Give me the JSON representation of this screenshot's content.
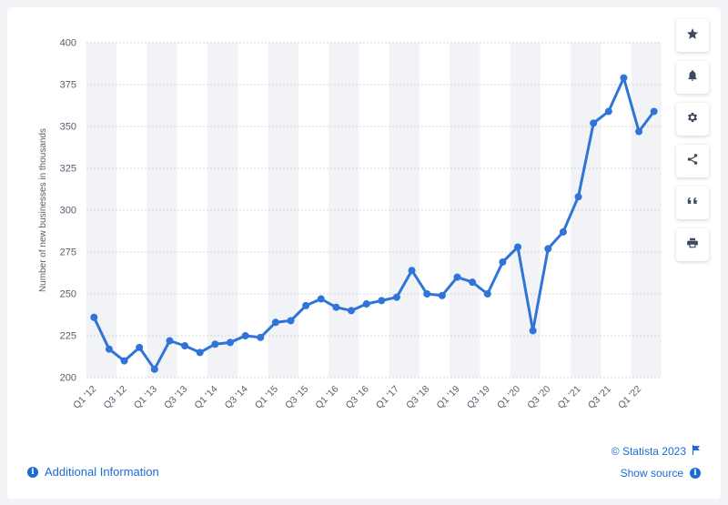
{
  "chart_data": {
    "type": "line",
    "ylabel": "Number of new businesses in thousands",
    "xlabel": "",
    "title": "",
    "ylim": [
      200,
      400
    ],
    "yticks": [
      200,
      225,
      250,
      275,
      300,
      325,
      350,
      375,
      400
    ],
    "grid": true,
    "legend": "none",
    "categories": [
      "Q1 '12",
      "Q2 '12",
      "Q3 '12",
      "Q4 '12",
      "Q1 '13",
      "Q2 '13",
      "Q3 '13",
      "Q4 '13",
      "Q1 '14",
      "Q2 '14",
      "Q3 '14",
      "Q4 '14",
      "Q1 '15",
      "Q2 '15",
      "Q3 '15",
      "Q4 '15",
      "Q1 '16",
      "Q2 '16",
      "Q3 '16",
      "Q4 '16",
      "Q1 '17",
      "Q2 '17",
      "Q3 '18",
      "Q4 '18",
      "Q1 '19",
      "Q2 '19",
      "Q3 '19",
      "Q4 '19",
      "Q1 '20",
      "Q2 '20",
      "Q3 '20",
      "Q4 '20",
      "Q1 '21",
      "Q2 '21",
      "Q3 '21",
      "Q4 '21",
      "Q1 '22",
      "Q2 '22"
    ],
    "tick_labels": [
      "Q1 '12",
      "Q3 '12",
      "Q1 '13",
      "Q3 '13",
      "Q1 '14",
      "Q3 '14",
      "Q1 '15",
      "Q3 '15",
      "Q1 '16",
      "Q3 '16",
      "Q1 '17",
      "Q3 '18",
      "Q1 '19",
      "Q3 '19",
      "Q1 '20",
      "Q3 '20",
      "Q1 '21",
      "Q3 '21",
      "Q1 '22"
    ],
    "series": [
      {
        "color": "#2f74d6",
        "values": [
          236,
          217,
          210,
          218,
          205,
          222,
          219,
          215,
          220,
          221,
          225,
          224,
          233,
          234,
          243,
          247,
          242,
          240,
          244,
          246,
          248,
          264,
          250,
          249,
          260,
          257,
          250,
          269,
          278,
          228,
          277,
          287,
          308,
          352,
          359,
          379,
          347,
          359
        ]
      }
    ]
  },
  "toolbar": {
    "buttons": [
      {
        "name": "star-icon"
      },
      {
        "name": "bell-icon"
      },
      {
        "name": "gear-icon"
      },
      {
        "name": "share-icon"
      },
      {
        "name": "quote-icon"
      },
      {
        "name": "print-icon"
      }
    ]
  },
  "footer": {
    "additional_info": "Additional Information",
    "copyright": "© Statista 2023",
    "show_source": "Show source",
    "info_glyph": "i"
  },
  "colors": {
    "line": "#2f74d6",
    "band": "#f2f3f6",
    "grid": "#d4d6db",
    "link": "#1a6cd6"
  }
}
